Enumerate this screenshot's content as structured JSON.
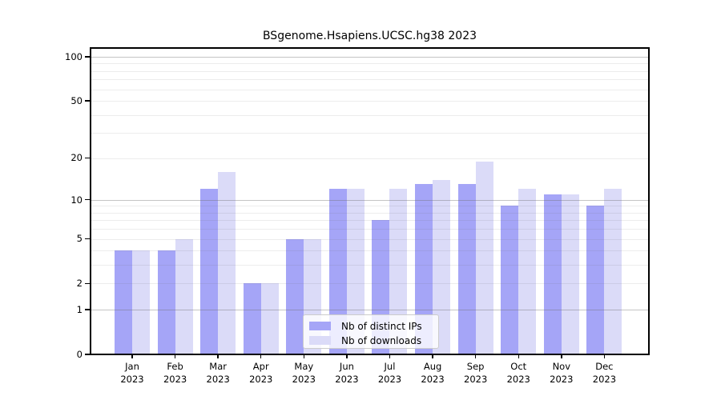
{
  "title": "BSgenome.Hsapiens.UCSC.hg38 2023",
  "chart_data": {
    "type": "bar",
    "title": "BSgenome.Hsapiens.UCSC.hg38 2023",
    "categories": [
      "Jan",
      "Feb",
      "Mar",
      "Apr",
      "May",
      "Jun",
      "Jul",
      "Aug",
      "Sep",
      "Oct",
      "Nov",
      "Dec"
    ],
    "category_year": "2023",
    "series": [
      {
        "name": "Nb of distinct IPs",
        "color": "#a5a5f7",
        "values": [
          4,
          4,
          12,
          2,
          5,
          12,
          7,
          13,
          13,
          9,
          11,
          9
        ]
      },
      {
        "name": "Nb of downloads",
        "color": "#dbdbf8",
        "values": [
          4,
          5,
          16,
          2,
          5,
          12,
          12,
          14,
          19,
          12,
          11,
          12
        ]
      }
    ],
    "xlabel": "",
    "ylabel": "",
    "yscale": "log1p",
    "ylim": [
      0,
      115
    ],
    "ytick_values": [
      0,
      1,
      2,
      5,
      10,
      20,
      50,
      100
    ],
    "ytick_labels": [
      "0",
      "1",
      "2",
      "5",
      "10",
      "20",
      "50",
      "100"
    ],
    "grid": {
      "on": true,
      "major_values": [
        1,
        10,
        100
      ],
      "minor_values": [
        2,
        3,
        4,
        5,
        6,
        7,
        8,
        9,
        20,
        30,
        40,
        50,
        60,
        70,
        80,
        90
      ]
    },
    "legend": {
      "position": "bottom-center",
      "entries": [
        "Nb of distinct IPs",
        "Nb of downloads"
      ]
    }
  },
  "colors": {
    "bar_ips": "#a5a5f7",
    "bar_downloads": "#dbdbf8",
    "axis": "#000000",
    "legend_border": "#cccccc",
    "background": "#ffffff"
  }
}
